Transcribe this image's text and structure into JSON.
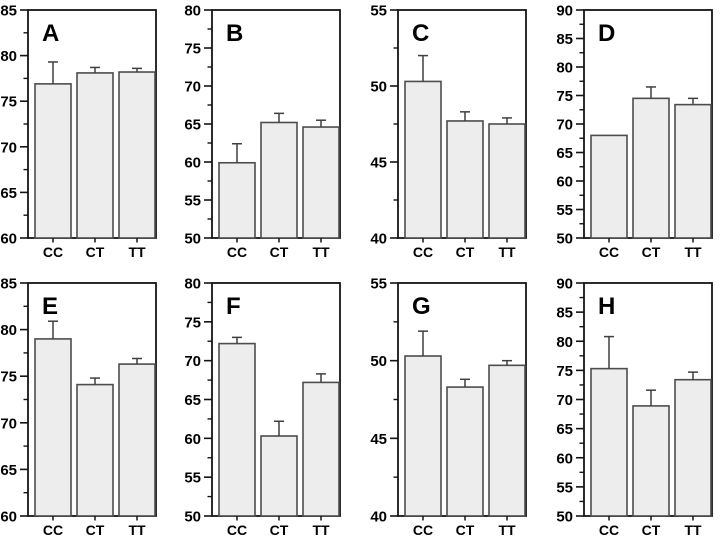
{
  "figure": {
    "background": "#ffffff",
    "bar_fill": "#ededed",
    "bar_stroke": "#4d4d4d",
    "error_bar_color": "#3f3f3f",
    "axis_color": "#141414",
    "text_color": "#000000"
  },
  "chart_data": [
    {
      "type": "bar",
      "panel": "A",
      "categories": [
        "CC",
        "CT",
        "TT"
      ],
      "values": [
        76.9,
        78.1,
        78.2
      ],
      "errors": [
        2.4,
        0.6,
        0.4
      ],
      "ylim": [
        60,
        85
      ],
      "ytick_step": 5,
      "yminor_step": 2.5,
      "xlabel": "",
      "ylabel": "",
      "grid": false,
      "legend": false
    },
    {
      "type": "bar",
      "panel": "B",
      "categories": [
        "CC",
        "CT",
        "TT"
      ],
      "values": [
        59.9,
        65.2,
        64.6
      ],
      "errors": [
        2.5,
        1.2,
        0.9
      ],
      "ylim": [
        50,
        80
      ],
      "ytick_step": 5,
      "yminor_step": 2.5,
      "xlabel": "",
      "ylabel": "",
      "grid": false,
      "legend": false
    },
    {
      "type": "bar",
      "panel": "C",
      "categories": [
        "CC",
        "CT",
        "TT"
      ],
      "values": [
        50.3,
        47.7,
        47.5
      ],
      "errors": [
        1.7,
        0.6,
        0.4
      ],
      "ylim": [
        40,
        55
      ],
      "ytick_step": 5,
      "yminor_step": 2.5,
      "xlabel": "",
      "ylabel": "",
      "grid": false,
      "legend": false
    },
    {
      "type": "bar",
      "panel": "D",
      "categories": [
        "CC",
        "CT",
        "TT"
      ],
      "values": [
        68.0,
        74.5,
        73.4
      ],
      "errors": [
        0,
        2.0,
        1.1
      ],
      "ylim": [
        50,
        90
      ],
      "ytick_step": 5,
      "yminor_step": 2.5,
      "xlabel": "",
      "ylabel": "",
      "grid": false,
      "legend": false
    },
    {
      "type": "bar",
      "panel": "E",
      "categories": [
        "CC",
        "CT",
        "TT"
      ],
      "values": [
        79.0,
        74.1,
        76.3
      ],
      "errors": [
        1.9,
        0.7,
        0.6
      ],
      "ylim": [
        60,
        85
      ],
      "ytick_step": 5,
      "yminor_step": 2.5,
      "xlabel": "",
      "ylabel": "",
      "grid": false,
      "legend": false
    },
    {
      "type": "bar",
      "panel": "F",
      "categories": [
        "CC",
        "CT",
        "TT"
      ],
      "values": [
        72.2,
        60.3,
        67.2
      ],
      "errors": [
        0.8,
        1.9,
        1.1
      ],
      "ylim": [
        50,
        80
      ],
      "ytick_step": 5,
      "yminor_step": 2.5,
      "xlabel": "",
      "ylabel": "",
      "grid": false,
      "legend": false
    },
    {
      "type": "bar",
      "panel": "G",
      "categories": [
        "CC",
        "CT",
        "TT"
      ],
      "values": [
        50.3,
        48.3,
        49.7
      ],
      "errors": [
        1.6,
        0.5,
        0.3
      ],
      "ylim": [
        40,
        55
      ],
      "ytick_step": 5,
      "yminor_step": 2.5,
      "xlabel": "",
      "ylabel": "",
      "grid": false,
      "legend": false
    },
    {
      "type": "bar",
      "panel": "H",
      "categories": [
        "CC",
        "CT",
        "TT"
      ],
      "values": [
        75.3,
        68.9,
        73.4
      ],
      "errors": [
        5.5,
        2.7,
        1.3
      ],
      "ylim": [
        50,
        90
      ],
      "ytick_step": 5,
      "yminor_step": 2.5,
      "xlabel": "",
      "ylabel": "",
      "grid": false,
      "legend": false
    }
  ]
}
